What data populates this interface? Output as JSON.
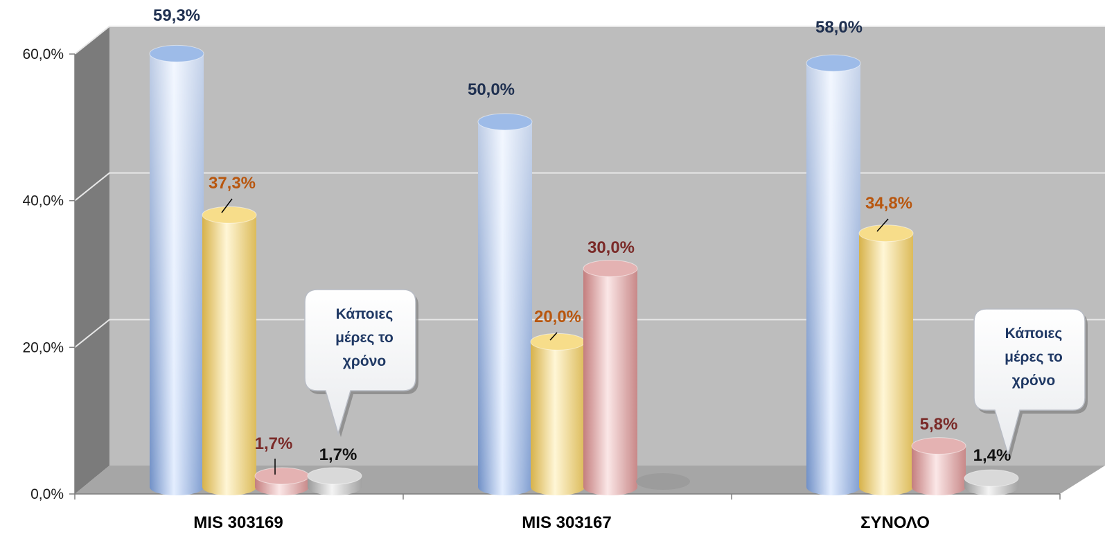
{
  "chart_data": {
    "type": "bar",
    "style": "3d-cylinder",
    "categories": [
      "MIS 303169",
      "MIS 303167",
      "ΣΥΝΟΛΟ"
    ],
    "series": [
      {
        "color": "#9dbbe8",
        "label_color": "#1f3050",
        "values": [
          59.3,
          50.0,
          58.0
        ]
      },
      {
        "color": "#f7dd8a",
        "label_color": "#b8560e",
        "values": [
          37.3,
          20.0,
          34.8
        ]
      },
      {
        "color": "#e4b2b2",
        "label_color": "#7a2a28",
        "values": [
          1.7,
          30.0,
          5.8
        ]
      },
      {
        "color": "#d9d9d9",
        "label_color": "#111111",
        "values": [
          1.7,
          0.0,
          1.4
        ]
      }
    ],
    "data_labels": [
      [
        "59,3%",
        "37,3%",
        "1,7%",
        "1,7%"
      ],
      [
        "50,0%",
        "20,0%",
        "30,0%",
        ""
      ],
      [
        "58,0%",
        "34,8%",
        "5,8%",
        "1,4%"
      ]
    ],
    "yticks": [
      "0,0%",
      "20,0%",
      "40,0%",
      "60,0%"
    ],
    "ylim": [
      0,
      60
    ],
    "grid": true,
    "callouts": [
      {
        "category_index": 0,
        "series_index": 3,
        "lines": [
          "Κάποιες",
          "μέρες το",
          "χρόνο"
        ]
      },
      {
        "category_index": 2,
        "series_index": 3,
        "lines": [
          "Κάποιες",
          "μέρες το",
          "χρόνο"
        ]
      }
    ]
  }
}
